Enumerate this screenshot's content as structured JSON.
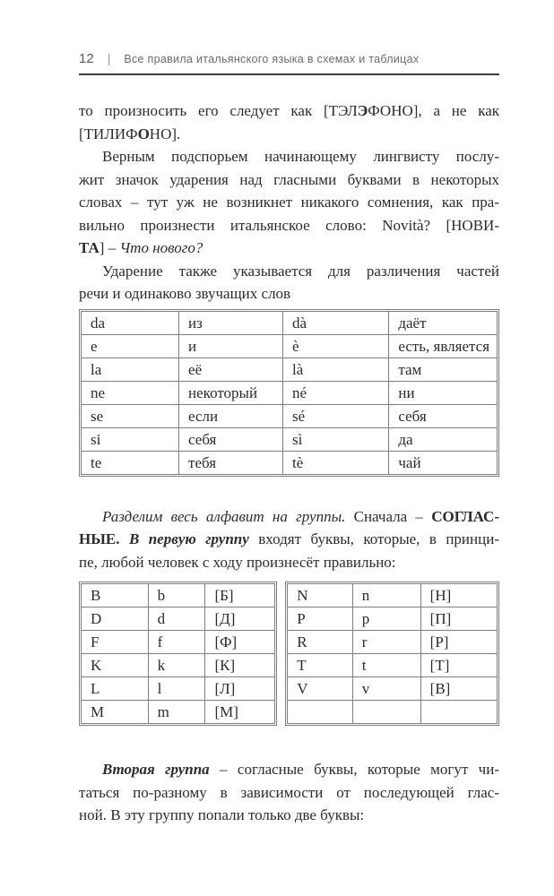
{
  "header": {
    "page_number": "12",
    "separator": "|",
    "title": "Все правила итальянского языка в схемах и таблицах"
  },
  "colors": {
    "text": "#2d2c2a",
    "header_text": "#6a6a6c",
    "rule": "#3f3f41",
    "table_border": "#7e7e7e",
    "background": "#ffffff"
  },
  "paragraphs": {
    "p1": {
      "lines": [
        [
          {
            "t": "то произносить его следует как [ТЭЛ"
          },
          {
            "t": "Э",
            "s": "b"
          },
          {
            "t": "ФОНО], а не как"
          }
        ],
        [
          {
            "t": "[ТИЛИФ"
          },
          {
            "t": "О",
            "s": "b"
          },
          {
            "t": "НО]."
          }
        ]
      ]
    },
    "p2": {
      "lines": [
        [
          {
            "t": "Верным подспорьем начинающему лингвисту послу-"
          }
        ],
        [
          {
            "t": "жит значок ударения над гласными буквами в некоторых"
          }
        ],
        [
          {
            "t": "словах – тут уж не возникнет никакого сомнения, как пра-"
          }
        ],
        [
          {
            "t": "вильно произнести итальянское слово: Novità? [НОВИ-"
          }
        ],
        [
          {
            "t": "ТА",
            "s": "b"
          },
          {
            "t": "] – "
          },
          {
            "t": "Что нового?",
            "s": "i"
          }
        ]
      ]
    },
    "p3": {
      "lines": [
        [
          {
            "t": "Ударение также указывается для различения частей"
          }
        ],
        [
          {
            "t": "речи и одинаково звучащих слов"
          }
        ]
      ]
    },
    "p4": {
      "lines": [
        [
          {
            "t": "Разделим весь алфавит на группы.",
            "s": "i"
          },
          {
            "t": " Сначала – "
          },
          {
            "t": "СОГЛАС-",
            "s": "b"
          }
        ],
        [
          {
            "t": "НЫЕ. ",
            "s": "b"
          },
          {
            "t": "В первую группу",
            "s": "bi"
          },
          {
            "t": " входят буквы, которые, в принци-"
          }
        ],
        [
          {
            "t": "пе, любой человек с ходу произнесёт правильно:"
          }
        ]
      ]
    },
    "p5": {
      "lines": [
        [
          {
            "t": "Вторая группа",
            "s": "bi"
          },
          {
            "t": " – согласные буквы, которые могут чи-"
          }
        ],
        [
          {
            "t": "таться по-разному в зависимости от последующей глас-"
          }
        ],
        [
          {
            "t": "ной. В эту группу попали только две буквы:"
          }
        ]
      ]
    }
  },
  "tables": {
    "homographs": {
      "rows": [
        [
          "da",
          "из",
          "dà",
          "даёт"
        ],
        [
          "e",
          "и",
          "è",
          "есть, является"
        ],
        [
          "la",
          "её",
          "là",
          "там"
        ],
        [
          "ne",
          "некоторый",
          "né",
          "ни"
        ],
        [
          "se",
          "если",
          "sé",
          "себя"
        ],
        [
          "si",
          "себя",
          "sì",
          "да"
        ],
        [
          "te",
          "тебя",
          "tè",
          "чай"
        ]
      ]
    },
    "consonants_left": {
      "rows": [
        [
          "B",
          "b",
          "[Б]"
        ],
        [
          "D",
          "d",
          "[Д]"
        ],
        [
          "F",
          "f",
          "[Ф]"
        ],
        [
          "K",
          "k",
          "[К]"
        ],
        [
          "L",
          "l",
          "[Л]"
        ],
        [
          "M",
          "m",
          "[М]"
        ]
      ]
    },
    "consonants_right": {
      "rows": [
        [
          "N",
          "n",
          "[Н]"
        ],
        [
          "P",
          "p",
          "[П]"
        ],
        [
          "R",
          "r",
          "[Р]"
        ],
        [
          "T",
          "t",
          "[Т]"
        ],
        [
          "V",
          "v",
          "[В]"
        ],
        [
          "",
          "",
          ""
        ]
      ]
    }
  }
}
